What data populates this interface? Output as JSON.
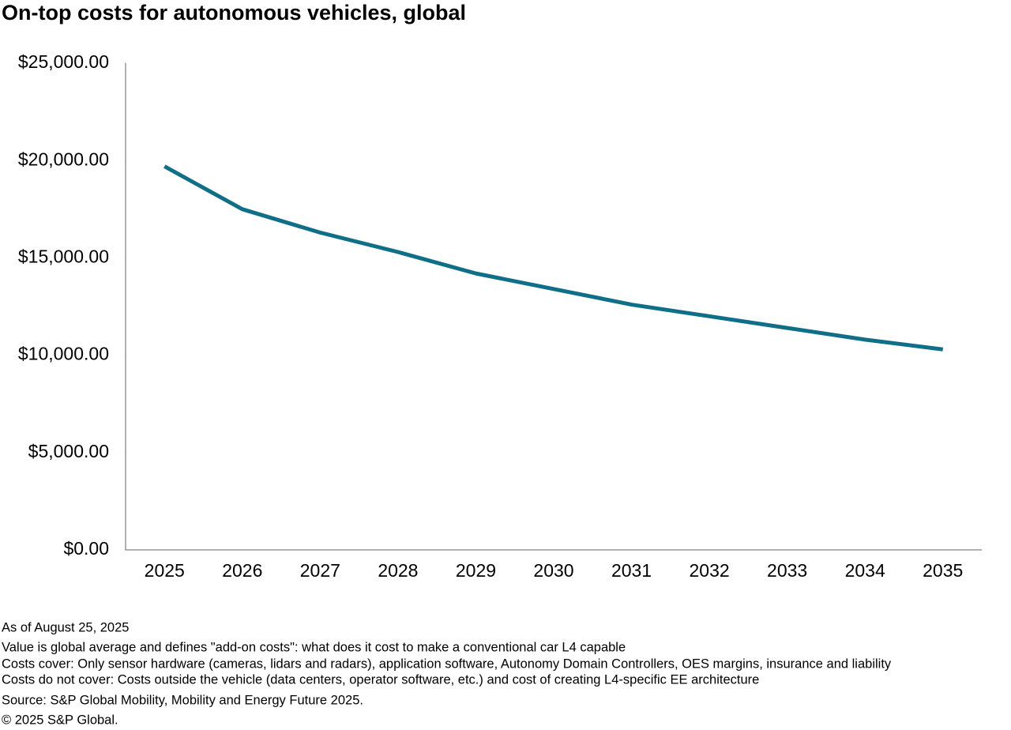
{
  "chart_data": {
    "type": "line",
    "title": "On-top costs for autonomous vehicles, global",
    "categories": [
      "2025",
      "2026",
      "2027",
      "2028",
      "2029",
      "2030",
      "2031",
      "2032",
      "2033",
      "2034",
      "2035"
    ],
    "series": [
      {
        "color": "#106f88",
        "values": [
          19700,
          17500,
          16300,
          15300,
          14200,
          13400,
          12600,
          12000,
          11400,
          10800,
          10300
        ]
      }
    ],
    "ylim": [
      0,
      25000
    ],
    "yticks": [
      {
        "value": 0,
        "label": "$0.00"
      },
      {
        "value": 5000,
        "label": "$5,000.00"
      },
      {
        "value": 10000,
        "label": "$10,000.00"
      },
      {
        "value": 15000,
        "label": "$15,000.00"
      },
      {
        "value": 20000,
        "label": "$20,000.00"
      },
      {
        "value": 25000,
        "label": "$25,000.00"
      }
    ],
    "grid": false,
    "notes": [
      "As of August 25, 2025",
      "Value is global average and defines \"add-on costs\": what does it cost to make a conventional car L4 capable",
      "Costs cover: Only sensor hardware (cameras, lidars and radars), application software, Autonomy Domain Controllers, OES margins, insurance and liability",
      "Costs do not cover: Costs outside the vehicle (data centers, operator software, etc.) and cost of creating L4-specific EE architecture",
      "Source: S&P Global Mobility, Mobility and Energy Future 2025.",
      "© 2025 S&P Global."
    ]
  }
}
